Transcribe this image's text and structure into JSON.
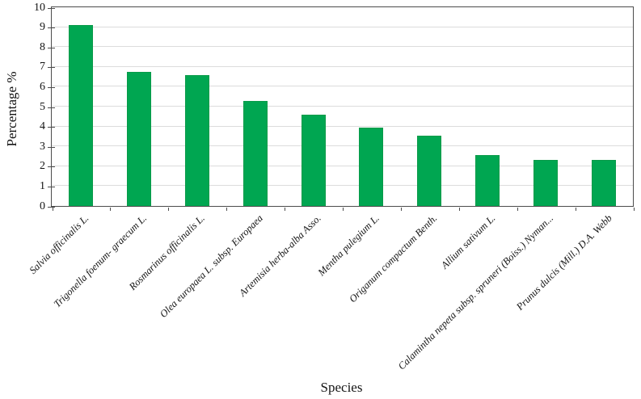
{
  "chart_data": {
    "type": "bar",
    "title": "",
    "xlabel": "Species",
    "ylabel": "Percentage %",
    "ylim": [
      0,
      10
    ],
    "yticks": [
      0,
      1,
      2,
      3,
      4,
      5,
      6,
      7,
      8,
      9,
      10
    ],
    "grid": true,
    "legend": false,
    "categories": [
      "Salvia officinalis L.",
      "Trigonella foenum- graecum L.",
      "Rosmarinus officinalis L.",
      "Olea europaea L. subsp. Europaea",
      "Artemisia herba-alba Asso.",
      "Mentha pulegium L.",
      "Origanum compactum Benth.",
      "Allium sativum L.",
      "Calamintha nepeta subsp. spruneri (Boiss.) Nyman...",
      "Prunus dulcis (Mill.) D.A. Webb"
    ],
    "values": [
      9.1,
      6.75,
      6.6,
      5.3,
      4.6,
      3.95,
      3.55,
      2.55,
      2.3,
      2.3
    ],
    "colors": {
      "bar_fill": "#00a651",
      "bar_border": "#089a49",
      "gridline": "#dcdcdc",
      "axis": "#4c4c4c",
      "text": "#141414"
    }
  }
}
